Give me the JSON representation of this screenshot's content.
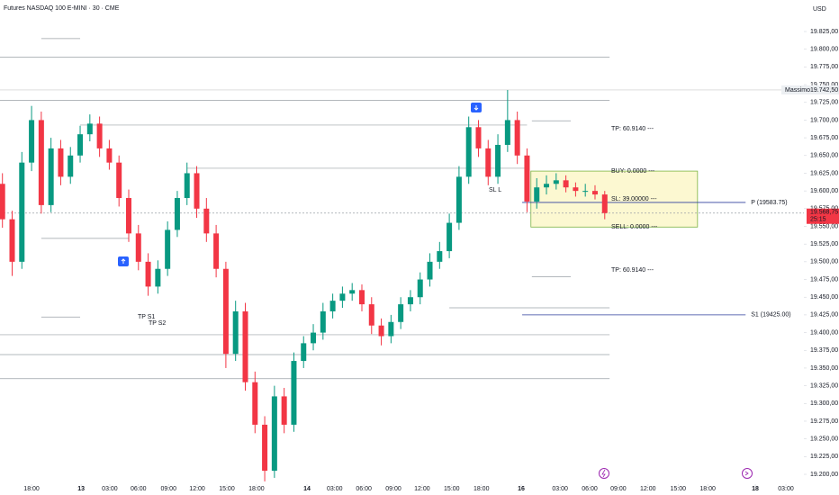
{
  "title": "Futures NASDAQ 100 E-MINI · 30 · CME",
  "currency": "USD",
  "chart_data": {
    "type": "candlestick",
    "x": [
      0,
      2,
      4,
      6,
      8,
      10,
      12,
      14,
      16,
      18,
      20,
      22,
      24,
      26,
      28,
      30,
      32,
      34,
      36,
      38,
      40,
      42,
      44,
      46,
      48,
      50,
      52,
      54,
      56,
      58,
      60,
      62,
      64,
      66,
      68,
      70,
      72,
      74,
      76,
      78,
      80,
      82,
      84,
      86,
      88,
      90,
      92,
      94,
      96,
      98,
      100,
      102,
      104,
      106,
      108,
      110,
      112,
      114,
      116,
      118,
      120,
      122,
      124
    ],
    "open": [
      19610,
      19560,
      19500,
      19640,
      19700,
      19580,
      19660,
      19620,
      19650,
      19680,
      19695,
      19660,
      19640,
      19590,
      19540,
      19500,
      19465,
      19490,
      19545,
      19590,
      19625,
      19575,
      19540,
      19490,
      19370,
      19430,
      19330,
      19270,
      19205,
      19310,
      19270,
      19360,
      19385,
      19400,
      19430,
      19445,
      19455,
      19460,
      19440,
      19410,
      19395,
      19415,
      19440,
      19450,
      19475,
      19500,
      19515,
      19555,
      19620,
      19690,
      19660,
      19620,
      19665,
      19700,
      19650,
      19585,
      19605,
      19610,
      19615,
      19605,
      19600,
      19600,
      19595
    ],
    "high": [
      19625,
      19572,
      19655,
      19720,
      19712,
      19675,
      19672,
      19662,
      19692,
      19708,
      19705,
      19672,
      19650,
      19602,
      19552,
      19512,
      19502,
      19557,
      19600,
      19640,
      19635,
      19590,
      19552,
      19500,
      19445,
      19442,
      19345,
      19282,
      19325,
      19322,
      19372,
      19395,
      19412,
      19442,
      19455,
      19465,
      19470,
      19468,
      19450,
      19420,
      19425,
      19450,
      19460,
      19485,
      19512,
      19528,
      19568,
      19635,
      19705,
      19700,
      19672,
      19680,
      19742.5,
      19712,
      19660,
      19618,
      19622,
      19625,
      19622,
      19612,
      19610,
      19608,
      19600
    ],
    "low": [
      19548,
      19480,
      19490,
      19628,
      19568,
      19570,
      19608,
      19610,
      19640,
      19670,
      19648,
      19630,
      19578,
      19528,
      19488,
      19452,
      19455,
      19480,
      19535,
      19580,
      19562,
      19528,
      19478,
      19350,
      19360,
      19318,
      19258,
      19190,
      19195,
      19258,
      19260,
      19350,
      19375,
      19390,
      19420,
      19435,
      19445,
      19430,
      19398,
      19382,
      19385,
      19405,
      19430,
      19440,
      19465,
      19490,
      19505,
      19545,
      19610,
      19648,
      19608,
      19610,
      19655,
      19638,
      19570,
      19575,
      19595,
      19602,
      19598,
      19592,
      19592,
      19588,
      19560
    ],
    "close": [
      19560,
      19500,
      19640,
      19700,
      19580,
      19660,
      19620,
      19650,
      19680,
      19695,
      19660,
      19640,
      19590,
      19540,
      19500,
      19465,
      19490,
      19545,
      19590,
      19625,
      19575,
      19540,
      19490,
      19370,
      19430,
      19330,
      19270,
      19205,
      19310,
      19270,
      19360,
      19385,
      19400,
      19430,
      19445,
      19455,
      19460,
      19440,
      19410,
      19395,
      19415,
      19440,
      19450,
      19475,
      19500,
      19515,
      19555,
      19620,
      19690,
      19660,
      19620,
      19665,
      19700,
      19650,
      19585,
      19605,
      19610,
      19615,
      19605,
      19600,
      19600,
      19595,
      19568.75
    ],
    "up_color": "#089981",
    "down_color": "#f23645",
    "xlim": [
      -0.5,
      165
    ],
    "xticks": [
      {
        "value": 6,
        "label": "18:00"
      },
      {
        "value": 16.2,
        "label": "13"
      },
      {
        "value": 22.1,
        "label": "03:00"
      },
      {
        "value": 28,
        "label": "06:00"
      },
      {
        "value": 34.2,
        "label": "09:00"
      },
      {
        "value": 40.1,
        "label": "12:00"
      },
      {
        "value": 46.2,
        "label": "15:00"
      },
      {
        "value": 52.3,
        "label": "18:00"
      },
      {
        "value": 62.7,
        "label": "14"
      },
      {
        "value": 68.4,
        "label": "03:00"
      },
      {
        "value": 74.4,
        "label": "06:00"
      },
      {
        "value": 80.5,
        "label": "09:00"
      },
      {
        "value": 86.4,
        "label": "12:00"
      },
      {
        "value": 92.5,
        "label": "15:00"
      },
      {
        "value": 98.6,
        "label": "18:00"
      },
      {
        "value": 106.8,
        "label": "16"
      },
      {
        "value": 114.8,
        "label": "03:00"
      },
      {
        "value": 120.9,
        "label": "06:00"
      },
      {
        "value": 126.8,
        "label": "09:00"
      },
      {
        "value": 132.9,
        "label": "12:00"
      },
      {
        "value": 139.1,
        "label": "15:00"
      },
      {
        "value": 145.2,
        "label": "18:00"
      },
      {
        "value": 155,
        "label": "18"
      },
      {
        "value": 161.3,
        "label": "03:00"
      }
    ],
    "ylim": [
      19183.5,
      19869.5
    ],
    "yticks": [
      {
        "value": 19825,
        "label": "19.825,00"
      },
      {
        "value": 19800,
        "label": "19.800,00"
      },
      {
        "value": 19775,
        "label": "19.775,00"
      },
      {
        "value": 19750,
        "label": "19.750,00"
      },
      {
        "value": 19725,
        "label": "19.725,00"
      },
      {
        "value": 19700,
        "label": "19.700,00"
      },
      {
        "value": 19675,
        "label": "19.675,00"
      },
      {
        "value": 19650,
        "label": "19.650,00"
      },
      {
        "value": 19625,
        "label": "19.625,00"
      },
      {
        "value": 19600,
        "label": "19.600,00"
      },
      {
        "value": 19575,
        "label": "19.575,00"
      },
      {
        "value": 19550,
        "label": "19.550,00"
      },
      {
        "value": 19525,
        "label": "19.525,00"
      },
      {
        "value": 19500,
        "label": "19.500,00"
      },
      {
        "value": 19475,
        "label": "19.475,00"
      },
      {
        "value": 19450,
        "label": "19.450,00"
      },
      {
        "value": 19425,
        "label": "19.425,00"
      },
      {
        "value": 19400,
        "label": "19.400,00"
      },
      {
        "value": 19375,
        "label": "19.375,00"
      },
      {
        "value": 19350,
        "label": "19.350,00"
      },
      {
        "value": 19325,
        "label": "19.325,00"
      },
      {
        "value": 19300,
        "label": "19.300,00"
      },
      {
        "value": 19275,
        "label": "19.275,00"
      },
      {
        "value": 19250,
        "label": "19.250,00"
      },
      {
        "value": 19225,
        "label": "19.225,00"
      },
      {
        "value": 19200,
        "label": "19.200,00"
      }
    ],
    "grid": false,
    "levels": [
      {
        "value": 19789,
        "x": [
          -0.5,
          125
        ]
      },
      {
        "value": 19728,
        "x": [
          -0.5,
          125
        ]
      },
      {
        "value": 19693,
        "x": [
          16,
          108
        ]
      },
      {
        "value": 19632,
        "x": [
          38,
          108
        ]
      },
      {
        "value": 19533,
        "x": [
          8,
          26
        ]
      },
      {
        "value": 19435,
        "x": [
          92,
          125
        ]
      },
      {
        "value": 19397,
        "x": [
          -0.5,
          125
        ]
      },
      {
        "value": 19369,
        "x": [
          -0.5,
          125
        ]
      },
      {
        "value": 19335,
        "x": [
          -0.5,
          125
        ]
      },
      {
        "value": 19815,
        "x": [
          8,
          16
        ]
      },
      {
        "value": 19422,
        "x": [
          8,
          16
        ]
      },
      {
        "value": 19479,
        "x": [
          109,
          117
        ]
      },
      {
        "value": 19699,
        "x": [
          109,
          117
        ]
      }
    ],
    "pivots": [
      {
        "label": "P (19583.75)",
        "value": 19583.75,
        "x": [
          107,
          153
        ]
      },
      {
        "label": "S1 (19425.00)",
        "value": 19425,
        "x": [
          107,
          153
        ]
      }
    ],
    "pivot_color": "#2f3f9e",
    "high_marker": {
      "text": "Massimo",
      "value": 19742.5,
      "label": "19.742,50"
    },
    "last_price": {
      "value": 19568.75,
      "label": "19.568,75",
      "countdown": "25:15"
    },
    "zone": {
      "top": 19628,
      "bottom": 19549,
      "x": [
        108.8,
        143.1
      ]
    },
    "annotations": [
      "TP: 60.9140 ---",
      "BUY: 0.0000 ---",
      "SL: 39.00000 ---",
      "SELL: 0.0000 ---",
      "TP: 60.9140 ---",
      "TP S1",
      "TP S2",
      "SL L"
    ]
  }
}
